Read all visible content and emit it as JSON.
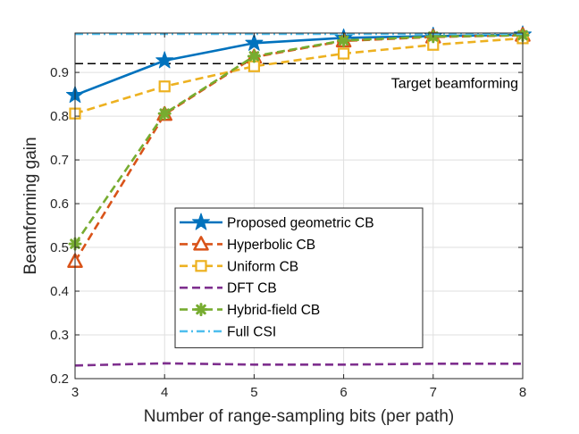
{
  "chart_data": {
    "type": "line",
    "title": "",
    "xlabel": "Number of range-sampling bits (per path)",
    "ylabel": "Beamforming gain",
    "xlim": [
      3,
      8
    ],
    "ylim": [
      0.2,
      0.99
    ],
    "xticks": [
      3,
      4,
      5,
      6,
      7,
      8
    ],
    "yticks": [
      0.2,
      0.3,
      0.4,
      0.5,
      0.6,
      0.7,
      0.8,
      0.9
    ],
    "x": [
      3,
      4,
      5,
      6,
      7,
      8
    ],
    "grid": true,
    "legend_position": "bottom-center",
    "series": [
      {
        "name": "Proposed geometric CB",
        "color": "#0072BD",
        "dash": "solid",
        "marker": "star",
        "values": [
          0.848,
          0.927,
          0.967,
          0.979,
          0.983,
          0.986
        ]
      },
      {
        "name": "Hyperbolic CB",
        "color": "#D95319",
        "dash": "dashed",
        "marker": "triangle",
        "values": [
          0.468,
          0.804,
          0.935,
          0.972,
          0.981,
          0.985
        ]
      },
      {
        "name": "Uniform CB",
        "color": "#EDB120",
        "dash": "dashed",
        "marker": "square",
        "values": [
          0.806,
          0.868,
          0.914,
          0.943,
          0.963,
          0.978
        ]
      },
      {
        "name": "DFT CB",
        "color": "#7E2F8E",
        "dash": "dashed",
        "marker": "none",
        "values": [
          0.23,
          0.235,
          0.232,
          0.232,
          0.234,
          0.234
        ]
      },
      {
        "name": "Hybrid-field CB",
        "color": "#77AC30",
        "dash": "dashed",
        "marker": "asterisk",
        "values": [
          0.508,
          0.806,
          0.937,
          0.973,
          0.982,
          0.985
        ]
      },
      {
        "name": "Full CSI",
        "color": "#4DBEEE",
        "dash": "dashdot",
        "marker": "none",
        "values": [
          0.988,
          0.988,
          0.988,
          0.988,
          0.988,
          0.988
        ]
      }
    ],
    "reference_line": {
      "value": 0.92,
      "label": "Target beamforming",
      "color": "#000000"
    }
  }
}
